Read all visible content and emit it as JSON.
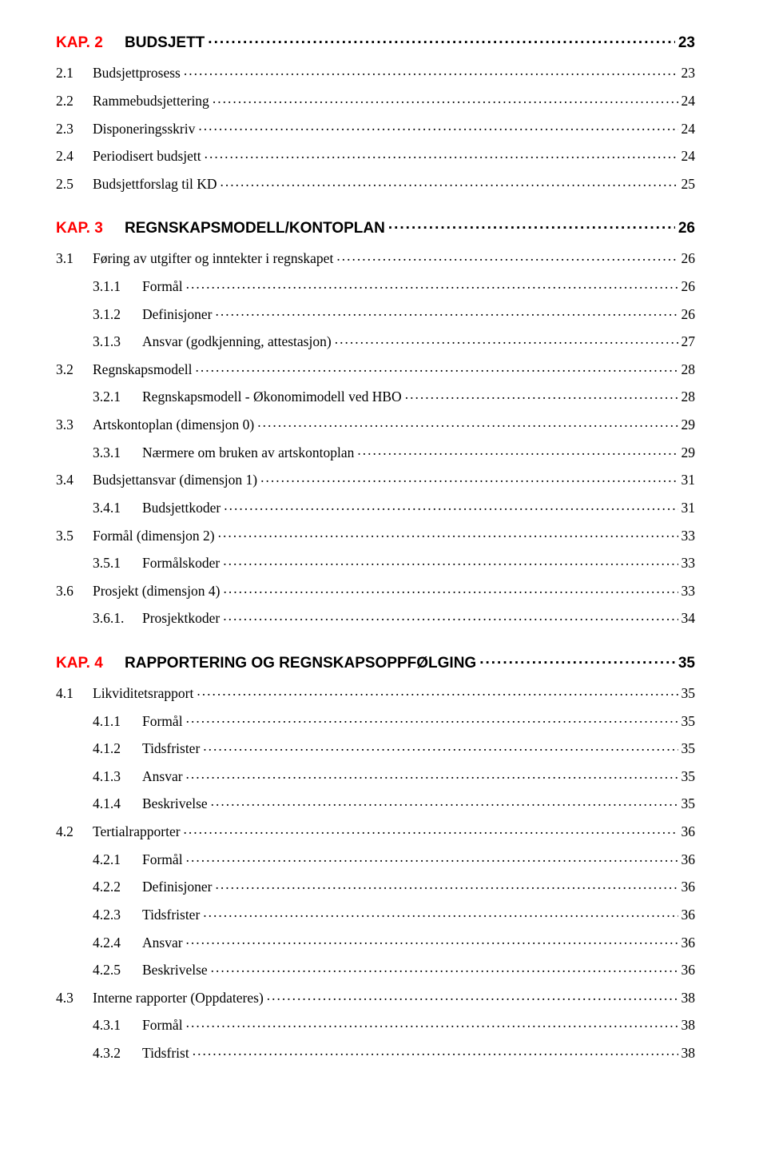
{
  "toc": [
    {
      "level": "chapter",
      "kap": "KAP. 2",
      "title": "BUDSJETT",
      "page": "23"
    },
    {
      "level": "sec1",
      "num": "2.1",
      "title": "Budsjettprosess",
      "page": "23"
    },
    {
      "level": "sec1",
      "num": "2.2",
      "title": "Rammebudsjettering",
      "page": "24"
    },
    {
      "level": "sec1",
      "num": "2.3",
      "title": "Disponeringsskriv",
      "page": "24"
    },
    {
      "level": "sec1",
      "num": "2.4",
      "title": "Periodisert budsjett",
      "page": "24"
    },
    {
      "level": "sec1",
      "num": "2.5",
      "title": "Budsjettforslag til KD",
      "page": "25"
    },
    {
      "level": "chapter",
      "kap": "KAP. 3",
      "title": "REGNSKAPSMODELL/KONTOPLAN",
      "page": "26"
    },
    {
      "level": "sec1",
      "num": "3.1",
      "title": "Føring av utgifter og inntekter i regnskapet",
      "page": "26"
    },
    {
      "level": "sec2",
      "num": "3.1.1",
      "title": "Formål",
      "page": "26"
    },
    {
      "level": "sec2",
      "num": "3.1.2",
      "title": "Definisjoner",
      "page": "26"
    },
    {
      "level": "sec2",
      "num": "3.1.3",
      "title": "Ansvar (godkjenning, attestasjon)",
      "page": "27"
    },
    {
      "level": "sec1",
      "num": "3.2",
      "title": "Regnskapsmodell",
      "page": "28"
    },
    {
      "level": "sec2",
      "num": "3.2.1",
      "title": "Regnskapsmodell - Økonomimodell ved HBO",
      "page": "28"
    },
    {
      "level": "sec1",
      "num": "3.3",
      "title": "Artskontoplan (dimensjon 0)",
      "page": "29"
    },
    {
      "level": "sec2",
      "num": "3.3.1",
      "title": "Nærmere om bruken av artskontoplan",
      "page": "29"
    },
    {
      "level": "sec1",
      "num": "3.4",
      "title": "Budsjettansvar (dimensjon 1)",
      "page": "31"
    },
    {
      "level": "sec2",
      "num": "3.4.1",
      "title": "Budsjettkoder",
      "page": "31"
    },
    {
      "level": "sec1",
      "num": "3.5",
      "title": "Formål (dimensjon 2)",
      "page": "33"
    },
    {
      "level": "sec2",
      "num": "3.5.1",
      "title": "Formålskoder",
      "page": "33"
    },
    {
      "level": "sec1",
      "num": "3.6",
      "title": "Prosjekt (dimensjon 4)",
      "page": "33"
    },
    {
      "level": "sec2",
      "num": "3.6.1.",
      "title": "Prosjektkoder",
      "page": "34"
    },
    {
      "level": "chapter",
      "kap": "KAP. 4",
      "title": "RAPPORTERING OG REGNSKAPSOPPFØLGING",
      "page": "35"
    },
    {
      "level": "sec1",
      "num": "4.1",
      "title": "Likviditetsrapport",
      "page": "35"
    },
    {
      "level": "sec2",
      "num": "4.1.1",
      "title": "Formål",
      "page": "35"
    },
    {
      "level": "sec2",
      "num": "4.1.2",
      "title": "Tidsfrister",
      "page": "35"
    },
    {
      "level": "sec2",
      "num": "4.1.3",
      "title": "Ansvar",
      "page": "35"
    },
    {
      "level": "sec2",
      "num": "4.1.4",
      "title": "Beskrivelse",
      "page": "35"
    },
    {
      "level": "sec1",
      "num": "4.2",
      "title": "Tertialrapporter",
      "page": "36"
    },
    {
      "level": "sec2",
      "num": "4.2.1",
      "title": "Formål",
      "page": "36"
    },
    {
      "level": "sec2",
      "num": "4.2.2",
      "title": "Definisjoner",
      "page": "36"
    },
    {
      "level": "sec2",
      "num": "4.2.3",
      "title": "Tidsfrister",
      "page": "36"
    },
    {
      "level": "sec2",
      "num": "4.2.4",
      "title": "Ansvar",
      "page": "36"
    },
    {
      "level": "sec2",
      "num": "4.2.5",
      "title": "Beskrivelse",
      "page": "36"
    },
    {
      "level": "sec1",
      "num": "4.3",
      "title": "Interne rapporter (Oppdateres)",
      "page": "38"
    },
    {
      "level": "sec2",
      "num": "4.3.1",
      "title": "Formål",
      "page": "38"
    },
    {
      "level": "sec2",
      "num": "4.3.2",
      "title": "Tidsfrist",
      "page": "38"
    }
  ]
}
